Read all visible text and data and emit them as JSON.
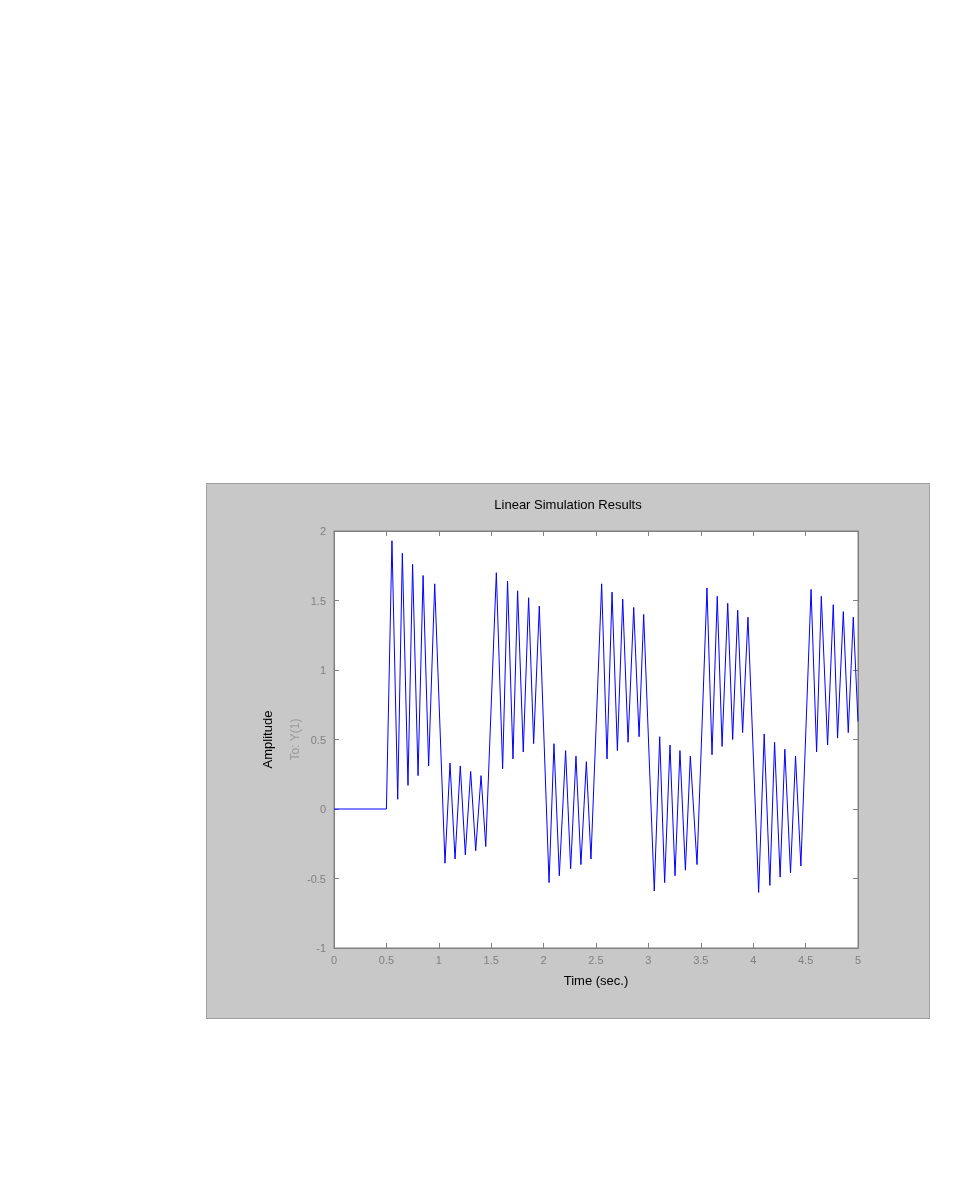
{
  "chart_data": {
    "type": "line",
    "title": "Linear Simulation Results",
    "xlabel": "Time (sec.)",
    "ylabel": "Amplitude",
    "annotations": [
      "To: Y(1)"
    ],
    "xlim": [
      0,
      5
    ],
    "xticks": [
      0,
      0.5,
      1,
      1.5,
      2,
      2.5,
      3,
      3.5,
      4,
      4.5,
      5
    ],
    "ylim": [
      -1,
      2
    ],
    "yticks": [
      -1,
      -0.5,
      0,
      0.5,
      1,
      1.5,
      2
    ],
    "grid": false,
    "marker": "none",
    "line_style": "solid",
    "series": [
      {
        "color": "#0000ff",
        "x": [
          0,
          0.5,
          0.553,
          0.608,
          0.652,
          0.706,
          0.75,
          0.802,
          0.85,
          0.903,
          0.961,
          1.059,
          1.107,
          1.155,
          1.205,
          1.253,
          1.304,
          1.352,
          1.403,
          1.448,
          1.549,
          1.609,
          1.656,
          1.708,
          1.752,
          1.806,
          1.857,
          1.905,
          1.959,
          2.052,
          2.099,
          2.15,
          2.21,
          2.258,
          2.309,
          2.356,
          2.408,
          2.452,
          2.554,
          2.605,
          2.653,
          2.704,
          2.755,
          2.806,
          2.86,
          2.911,
          2.955,
          3.056,
          3.108,
          3.155,
          3.206,
          3.254,
          3.301,
          3.353,
          3.4,
          3.464,
          3.559,
          3.607,
          3.657,
          3.703,
          3.757,
          3.804,
          3.852,
          3.899,
          3.95,
          4.052,
          4.105,
          4.159,
          4.204,
          4.257,
          4.302,
          4.356,
          4.404,
          4.455,
          4.552,
          4.605,
          4.65,
          4.71,
          4.764,
          4.805,
          4.86,
          4.907,
          4.955,
          5
        ],
        "values": [
          0,
          0,
          1.93,
          0.07,
          1.84,
          0.17,
          1.76,
          0.24,
          1.68,
          0.31,
          1.62,
          -0.39,
          0.33,
          -0.36,
          0.31,
          -0.33,
          0.27,
          -0.3,
          0.24,
          -0.27,
          1.7,
          0.29,
          1.64,
          0.36,
          1.57,
          0.41,
          1.52,
          0.47,
          1.46,
          -0.53,
          0.47,
          -0.48,
          0.42,
          -0.43,
          0.38,
          -0.4,
          0.34,
          -0.36,
          1.62,
          0.36,
          1.56,
          0.42,
          1.51,
          0.48,
          1.45,
          0.52,
          1.4,
          -0.59,
          0.52,
          -0.53,
          0.46,
          -0.48,
          0.42,
          -0.44,
          0.38,
          -0.4,
          1.59,
          0.39,
          1.53,
          0.45,
          1.48,
          0.5,
          1.43,
          0.55,
          1.38,
          -0.6,
          0.54,
          -0.55,
          0.48,
          -0.49,
          0.43,
          -0.46,
          0.38,
          -0.41,
          1.58,
          0.41,
          1.53,
          0.46,
          1.47,
          0.51,
          1.42,
          0.55,
          1.38,
          0.63
        ]
      }
    ]
  }
}
